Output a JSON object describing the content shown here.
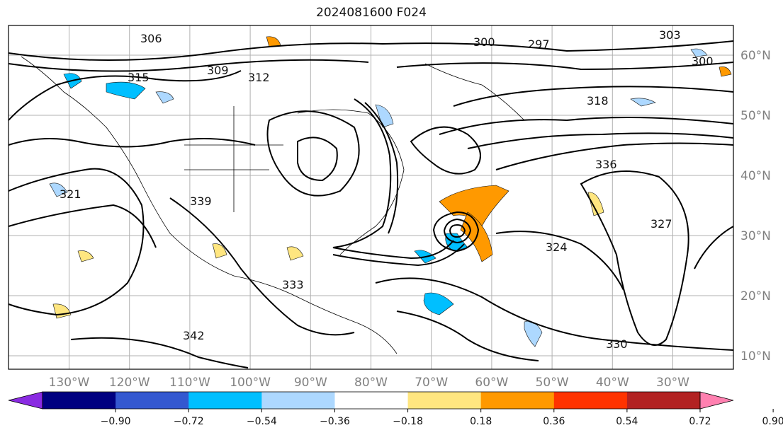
{
  "title": "2024081600 F024",
  "map": {
    "lon_labels": [
      "130°W",
      "120°W",
      "110°W",
      "100°W",
      "90°W",
      "80°W",
      "70°W",
      "60°W",
      "50°W",
      "40°W",
      "30°W"
    ],
    "lat_labels": [
      "60°N",
      "50°N",
      "40°N",
      "30°N",
      "20°N",
      "10°N"
    ],
    "contour_labels": [
      "306",
      "300",
      "297",
      "303",
      "300",
      "309",
      "312",
      "315",
      "318",
      "321",
      "324",
      "327",
      "330",
      "333",
      "336",
      "339",
      "342"
    ]
  },
  "colorbar": {
    "ticks": [
      "−0.90",
      "−0.72",
      "−0.54",
      "−0.36",
      "−0.18",
      "0.18",
      "0.36",
      "0.54",
      "0.72",
      "0.90"
    ],
    "colors": [
      "#8a2be2",
      "#000080",
      "#3458d0",
      "#00bfff",
      "#add8ff",
      "#ffffff",
      "#ffe680",
      "#ff9900",
      "#ff3300",
      "#b22222",
      "#ff80b0"
    ]
  }
}
